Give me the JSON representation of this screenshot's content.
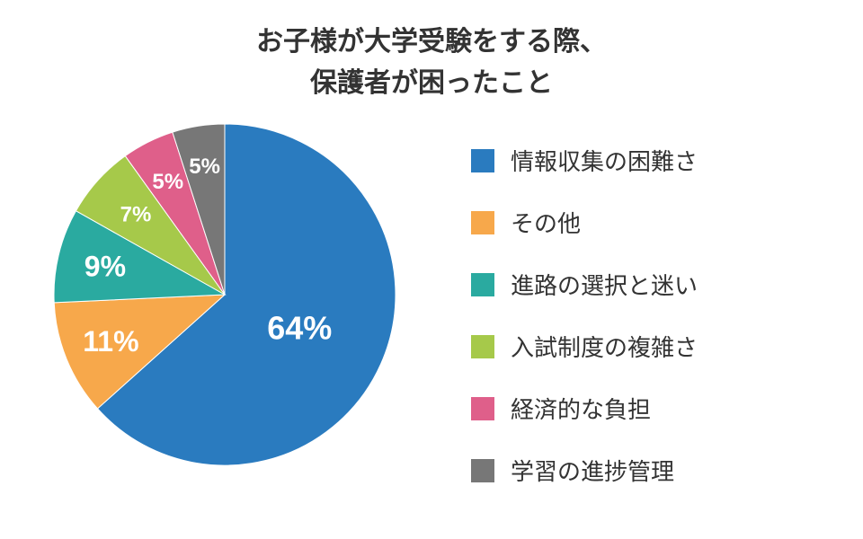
{
  "title": {
    "line1": "お子様が大学受験をする際、",
    "line2": "保護者が困ったこと"
  },
  "chart_data": {
    "type": "pie",
    "categories": [
      "情報収集の困難さ",
      "その他",
      "進路の選択と迷い",
      "入試制度の複雑さ",
      "経済的な負担",
      "学習の進捗管理"
    ],
    "values": [
      64,
      11,
      9,
      7,
      5,
      5
    ],
    "value_labels": [
      "64%",
      "11%",
      "9%",
      "7%",
      "5%",
      "5%"
    ],
    "colors": [
      "#2a7bbf",
      "#f7a84b",
      "#2aaaa0",
      "#a6c94a",
      "#df5f8a",
      "#777777"
    ],
    "start_angle": "12 o'clock",
    "direction": "clockwise",
    "legend": "right"
  }
}
